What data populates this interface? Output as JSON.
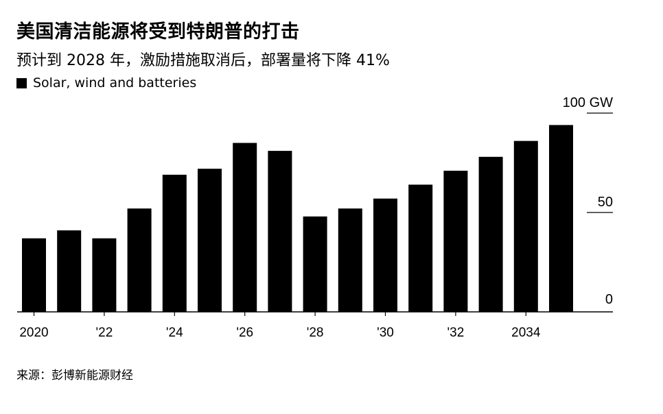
{
  "header": {
    "title": "美国清洁能源将受到特朗普的打击",
    "subtitle": "预计到 2028 年，激励措施取消后，部署量将下降 41%"
  },
  "legend": {
    "label": "Solar, wind and batteries",
    "color": "#000000"
  },
  "footer": {
    "source": "来源：彭博新能源财经"
  },
  "chart_data": {
    "type": "bar",
    "title": "美国清洁能源将受到特朗普的打击",
    "subtitle": "预计到 2028 年，激励措施取消后，部署量将下降 41%",
    "categories": [
      "2020",
      "2021",
      "2022",
      "2023",
      "2024",
      "2025",
      "2026",
      "2027",
      "2028",
      "2029",
      "2030",
      "2031",
      "2032",
      "2033",
      "2034",
      "2035"
    ],
    "series": [
      {
        "name": "Solar, wind and batteries",
        "values": [
          37,
          41,
          37,
          52,
          69,
          72,
          85,
          81,
          48,
          52,
          57,
          64,
          71,
          78,
          86,
          94
        ]
      }
    ],
    "x_tick_labels": [
      {
        "category": "2020",
        "label": "2020"
      },
      {
        "category": "2022",
        "label": "'22"
      },
      {
        "category": "2024",
        "label": "'24"
      },
      {
        "category": "2026",
        "label": "'26"
      },
      {
        "category": "2028",
        "label": "'28"
      },
      {
        "category": "2030",
        "label": "'30"
      },
      {
        "category": "2032",
        "label": "'32"
      },
      {
        "category": "2034",
        "label": "2034"
      }
    ],
    "y_ticks": [
      {
        "value": 0,
        "label": "0"
      },
      {
        "value": 50,
        "label": "50"
      },
      {
        "value": 100,
        "label": "100 GW"
      }
    ],
    "ylim": [
      0,
      100
    ],
    "y_axis_side": "right",
    "grid": false,
    "bar_color": "#000000",
    "legend_position": "top-left"
  }
}
